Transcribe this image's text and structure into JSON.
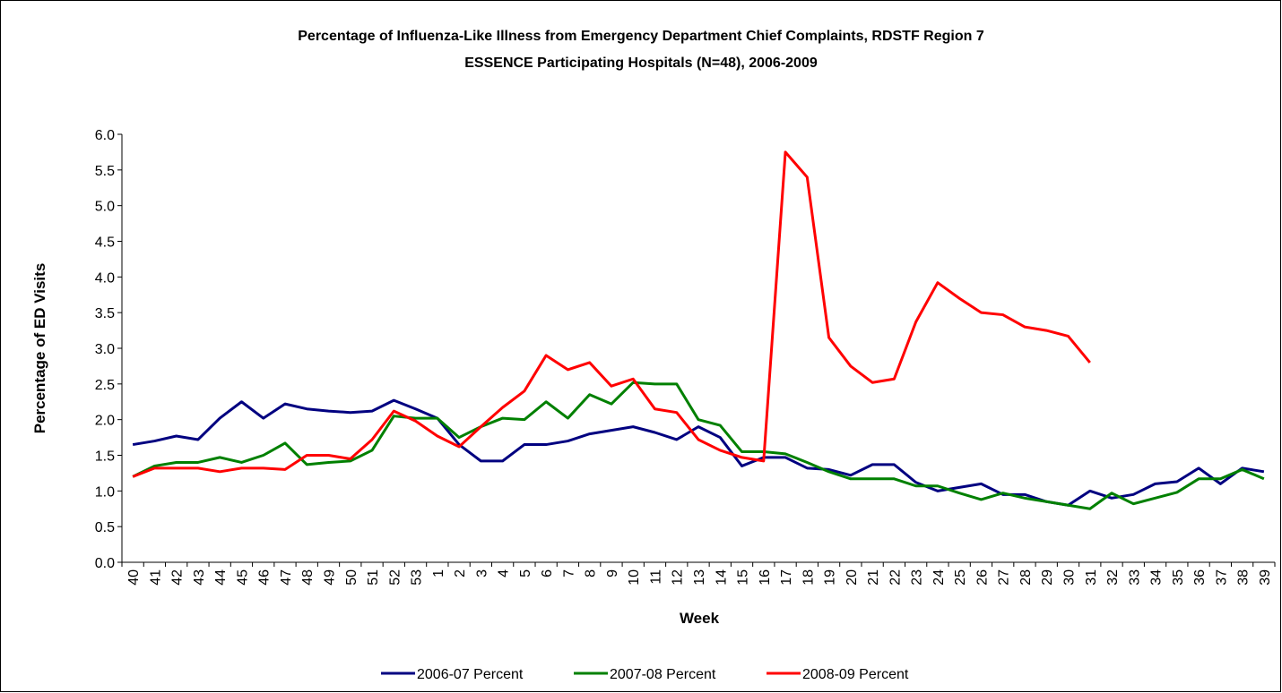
{
  "chart_data": {
    "type": "line",
    "title": "Percentage of Influenza-Like Illness from Emergency Department Chief Complaints, RDSTF Region 7",
    "subtitle": "ESSENCE Participating Hospitals (N=48), 2006-2009",
    "x_label": "Week",
    "y_label": "Percentage of ED Visits",
    "categories": [
      "40",
      "41",
      "42",
      "43",
      "44",
      "45",
      "46",
      "47",
      "48",
      "49",
      "50",
      "51",
      "52",
      "53",
      "1",
      "2",
      "3",
      "4",
      "5",
      "6",
      "7",
      "8",
      "9",
      "10",
      "11",
      "12",
      "13",
      "14",
      "15",
      "16",
      "17",
      "18",
      "19",
      "20",
      "21",
      "22",
      "23",
      "24",
      "25",
      "26",
      "27",
      "28",
      "29",
      "30",
      "31",
      "32",
      "33",
      "34",
      "35",
      "36",
      "37",
      "38",
      "39"
    ],
    "series": [
      {
        "name": "2006-07 Percent",
        "color": "#000080",
        "values": [
          1.65,
          1.7,
          1.77,
          1.72,
          2.02,
          2.25,
          2.02,
          2.22,
          2.15,
          2.12,
          2.1,
          2.12,
          2.27,
          2.15,
          2.02,
          1.65,
          1.42,
          1.42,
          1.65,
          1.65,
          1.7,
          1.8,
          1.85,
          1.9,
          1.82,
          1.72,
          1.9,
          1.75,
          1.35,
          1.47,
          1.47,
          1.32,
          1.3,
          1.22,
          1.37,
          1.37,
          1.12,
          1.0,
          1.05,
          1.1,
          0.95,
          0.95,
          0.85,
          0.8,
          1.0,
          0.9,
          0.95,
          1.1,
          1.13,
          1.32,
          1.1,
          1.32,
          1.27
        ]
      },
      {
        "name": "2007-08 Percent",
        "color": "#008000",
        "values": [
          1.2,
          1.35,
          1.4,
          1.4,
          1.47,
          1.4,
          1.5,
          1.67,
          1.37,
          1.4,
          1.42,
          1.57,
          2.05,
          2.02,
          2.02,
          1.75,
          1.9,
          2.02,
          2.0,
          2.25,
          2.02,
          2.35,
          2.22,
          2.52,
          2.5,
          2.5,
          2.0,
          1.92,
          1.55,
          1.55,
          1.52,
          1.4,
          1.27,
          1.17,
          1.17,
          1.17,
          1.07,
          1.07,
          0.97,
          0.88,
          0.97,
          0.9,
          0.85,
          0.8,
          0.75,
          0.97,
          0.82,
          0.9,
          0.98,
          1.17,
          1.17,
          1.3,
          1.17
        ]
      },
      {
        "name": "2008-09 Percent",
        "color": "#ff0000",
        "values": [
          1.2,
          1.32,
          1.32,
          1.32,
          1.27,
          1.32,
          1.32,
          1.3,
          1.5,
          1.5,
          1.45,
          1.72,
          2.12,
          1.98,
          1.77,
          1.62,
          1.9,
          2.17,
          2.4,
          2.9,
          2.7,
          2.8,
          2.47,
          2.57,
          2.15,
          2.1,
          1.72,
          1.57,
          1.47,
          1.42,
          5.75,
          5.4,
          3.15,
          2.75,
          2.52,
          2.57,
          3.37,
          3.92,
          3.7,
          3.5,
          3.47,
          3.3,
          3.25,
          3.17,
          2.8,
          null,
          null,
          null,
          null,
          null,
          null,
          null,
          null
        ]
      }
    ],
    "ylim": [
      0,
      6
    ],
    "yticks": [
      {
        "value": 0,
        "label": "0.0"
      },
      0.5,
      {
        "value": 1,
        "label": "1.0"
      },
      1.5,
      {
        "value": 2,
        "label": "2.0"
      },
      2.5,
      {
        "value": 3,
        "label": "3.0"
      },
      3.5,
      {
        "value": 4,
        "label": "4.0"
      },
      4.5,
      {
        "value": 5,
        "label": "5.0"
      },
      5.5,
      {
        "value": 6,
        "label": "6.0"
      }
    ],
    "grid": false,
    "legend": "bottom"
  }
}
